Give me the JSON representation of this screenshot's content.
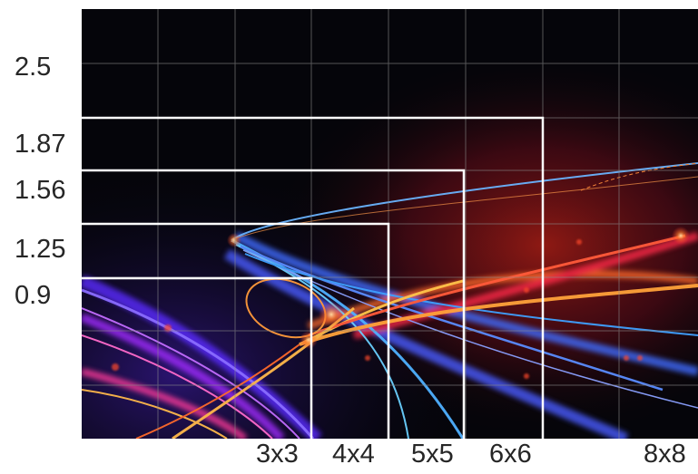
{
  "y_labels": [
    "2.5",
    "1.87",
    "1.56",
    "1.25",
    "0.9"
  ],
  "x_labels": [
    "3x3",
    "4x4",
    "5x5",
    "6x6",
    "8x8"
  ],
  "colors": {
    "background": "#05050a",
    "grid": "#8a8a8a",
    "frame": "#ffffff",
    "text": "#262626",
    "light_orange": "#ffb84a",
    "light_red": "#ff3b2a",
    "light_blue": "#3f8cff",
    "light_purple": "#7a3cff"
  }
}
